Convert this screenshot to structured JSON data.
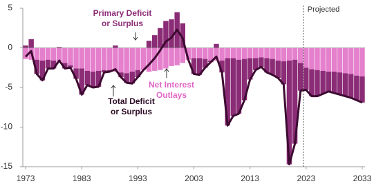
{
  "chart_data": {
    "type": "bar",
    "x": [
      1973,
      1974,
      1975,
      1976,
      1977,
      1978,
      1979,
      1980,
      1981,
      1982,
      1983,
      1984,
      1985,
      1986,
      1987,
      1988,
      1989,
      1990,
      1991,
      1992,
      1993,
      1994,
      1995,
      1996,
      1997,
      1998,
      1999,
      2000,
      2001,
      2002,
      2003,
      2004,
      2005,
      2006,
      2007,
      2008,
      2009,
      2010,
      2011,
      2012,
      2013,
      2014,
      2015,
      2016,
      2017,
      2018,
      2019,
      2020,
      2021,
      2022,
      2023,
      2024,
      2025,
      2026,
      2027,
      2028,
      2029,
      2030,
      2031,
      2032,
      2033
    ],
    "series": [
      {
        "name": "Net Interest Outlays",
        "color": "#e580cd",
        "values": [
          -1.4,
          -1.5,
          -1.5,
          -1.6,
          -1.5,
          -1.6,
          -1.7,
          -1.9,
          -2.2,
          -2.6,
          -2.6,
          -2.9,
          -3.0,
          -2.9,
          -2.8,
          -2.8,
          -3.0,
          -3.1,
          -3.2,
          -3.0,
          -2.8,
          -2.8,
          -3.0,
          -2.9,
          -2.8,
          -2.6,
          -2.3,
          -2.2,
          -1.9,
          -1.5,
          -1.3,
          -1.3,
          -1.4,
          -1.6,
          -1.6,
          -1.6,
          -1.3,
          -1.3,
          -1.5,
          -1.4,
          -1.3,
          -1.3,
          -1.2,
          -1.3,
          -1.4,
          -1.6,
          -1.7,
          -1.6,
          -1.5,
          -1.9,
          -2.5,
          -2.7,
          -2.8,
          -2.9,
          -3.0,
          -3.0,
          -3.1,
          -3.2,
          -3.3,
          -3.5,
          -3.6
        ]
      },
      {
        "name": "Primary Deficit or Surplus",
        "color": "#8b2c76",
        "values": [
          0.3,
          1.1,
          -1.8,
          -2.5,
          -1.1,
          -1.0,
          0.1,
          -0.7,
          -0.3,
          -1.3,
          -3.3,
          -1.8,
          -2.0,
          -2.0,
          -0.3,
          -0.2,
          0.3,
          -0.6,
          -1.2,
          -1.5,
          -0.9,
          0.0,
          0.9,
          1.6,
          2.5,
          3.4,
          3.6,
          4.5,
          3.1,
          0.0,
          -2.0,
          -2.1,
          -1.1,
          -0.2,
          0.5,
          -1.5,
          -8.5,
          -7.3,
          -6.8,
          -5.2,
          -2.7,
          -1.5,
          -1.2,
          -1.8,
          -2.0,
          -2.2,
          -2.9,
          -13.1,
          -10.6,
          -3.5,
          -2.8,
          -3.4,
          -3.3,
          -2.9,
          -2.5,
          -2.7,
          -2.8,
          -2.9,
          -3.0,
          -3.1,
          -3.3
        ]
      },
      {
        "name": "Total Deficit or Surplus",
        "color": "#3d0b31",
        "type": "line",
        "values": [
          -1.1,
          -0.4,
          -3.3,
          -4.1,
          -2.6,
          -2.6,
          -1.6,
          -2.6,
          -2.5,
          -3.9,
          -5.9,
          -4.7,
          -5.0,
          -4.9,
          -3.1,
          -3.0,
          -2.7,
          -3.7,
          -4.4,
          -4.5,
          -3.7,
          -2.8,
          -2.1,
          -1.3,
          -0.3,
          0.8,
          1.3,
          2.3,
          1.2,
          -1.5,
          -3.3,
          -3.4,
          -2.5,
          -1.8,
          -1.1,
          -3.1,
          -9.8,
          -8.6,
          -8.3,
          -6.6,
          -4.0,
          -2.8,
          -2.4,
          -3.1,
          -3.4,
          -3.8,
          -4.6,
          -14.7,
          -12.1,
          -5.4,
          -5.3,
          -6.1,
          -6.1,
          -5.8,
          -5.5,
          -5.7,
          -5.9,
          -6.1,
          -6.3,
          -6.6,
          -6.9
        ]
      }
    ],
    "xlim": [
      1972.5,
      2033.5
    ],
    "xticks": [
      1973,
      1983,
      1993,
      2003,
      2013,
      2023,
      2033
    ],
    "ylim": [
      -15,
      5
    ],
    "yticks": [
      5,
      0,
      -5,
      -10,
      -15
    ],
    "projected": {
      "x": 2022.5,
      "label": "Projected"
    },
    "annotations": [
      {
        "lines": [
          "Primary Deficit",
          "or Surplus"
        ],
        "color": "#8b2c76"
      },
      {
        "lines": [
          "Net Interest",
          "Outlays"
        ],
        "color": "#e066c4"
      },
      {
        "lines": [
          "Total Deficit",
          "or Surplus"
        ],
        "color": "#2b0a24"
      }
    ]
  }
}
